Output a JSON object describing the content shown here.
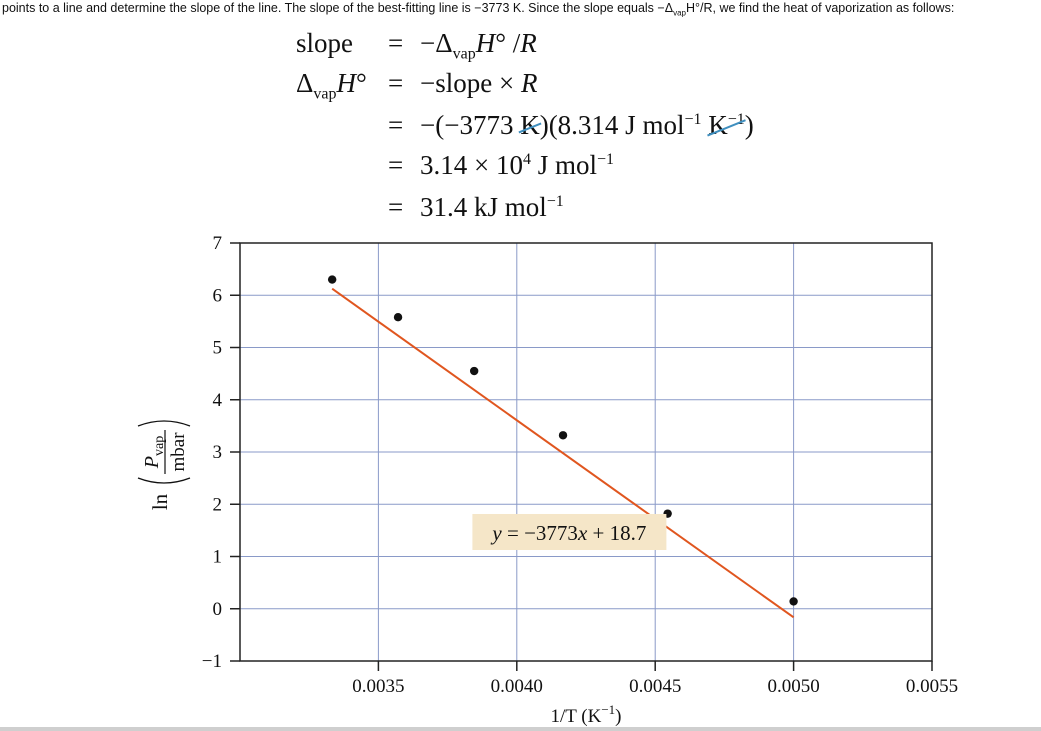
{
  "intro": {
    "part1": "points to a line and determine the slope of the line. The slope of the best-fitting line is −3773 K. Since the slope equals −Δ",
    "sub": "vap",
    "part2": "H°/R, we find the heat of vaporization as follows:"
  },
  "equations": {
    "l1_lhs": "slope",
    "l1_eq": "=",
    "l1_rhs_a": "−Δ",
    "l1_rhs_sub": "vap",
    "l1_rhs_b": "H",
    "l1_rhs_c": "° /",
    "l1_rhs_d": "R",
    "l2_lhs_a": "Δ",
    "l2_lhs_sub": "vap",
    "l2_lhs_b": "H",
    "l2_lhs_c": "°",
    "l2_eq": "=",
    "l2_rhs_a": "−slope × ",
    "l2_rhs_b": "R",
    "l3_eq": "=",
    "l3_a": "−(−3773 ",
    "l3_k1": "K",
    "l3_b": ")(8.314 J mol",
    "l3_sup1": "−1",
    "l3_k2": "K",
    "l3_sup2": "−1",
    "l3_c": ")",
    "l4_eq": "=",
    "l4_a": "3.14 × 10",
    "l4_sup1": "4",
    "l4_b": " J mol",
    "l4_sup2": "−1",
    "l5_eq": "=",
    "l5_a": "31.4 kJ mol",
    "l5_sup": "−1"
  },
  "chart_data": {
    "type": "scatter",
    "x": [
      0.003333,
      0.003571,
      0.003846,
      0.004167,
      0.004545,
      0.005
    ],
    "y": [
      6.3,
      5.58,
      4.55,
      3.32,
      1.82,
      0.14
    ],
    "xlim": [
      0.003,
      0.0055
    ],
    "ylim": [
      -1,
      7
    ],
    "xticks": [
      "0.0035",
      "0.0040",
      "0.0045",
      "0.0050",
      "0.0055"
    ],
    "yticks": [
      "−1",
      "0",
      "1",
      "2",
      "3",
      "4",
      "5",
      "6",
      "7"
    ],
    "grid": true,
    "fit": {
      "slope": -3773,
      "intercept": 18.7,
      "x_from": 0.003333,
      "x_to": 0.005,
      "color": "#e0561f"
    },
    "annotation": {
      "text_y": "y",
      "text_eq": " = −3773",
      "text_x": "x",
      "text_rest": " + 18.7",
      "bg": "#f5e6c8",
      "x": 0.00419,
      "y": 1.45
    },
    "xlabel": {
      "a": "1/T (K",
      "sup": "−1",
      "b": ")"
    },
    "ylabel": {
      "ln": "ln",
      "num": "P",
      "num_sub": "vap",
      "den": "mbar"
    },
    "colors": {
      "grid": "#8a9ac8",
      "marker": "#111111",
      "axis": "#222222"
    }
  }
}
